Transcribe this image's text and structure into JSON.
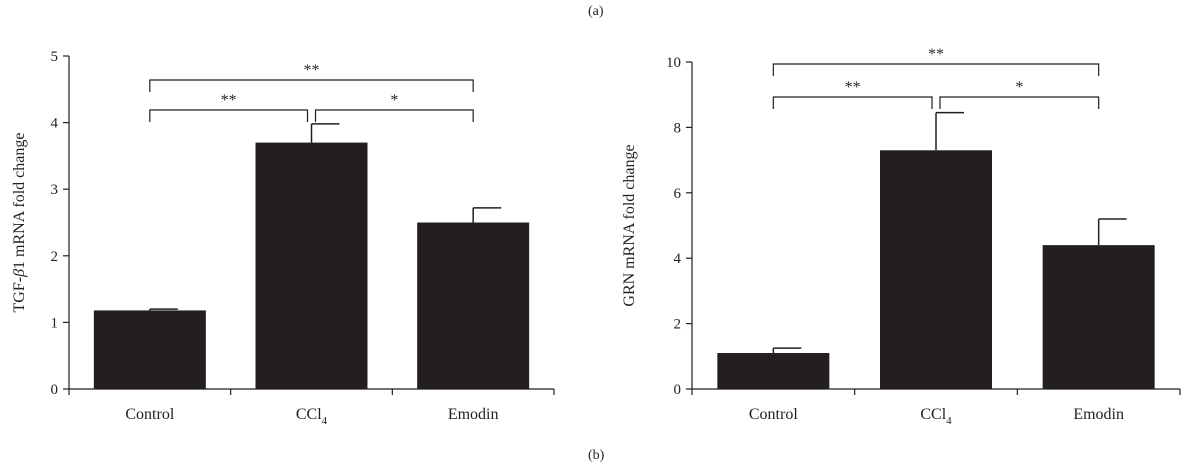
{
  "panel_labels": {
    "top": "(a)",
    "bottom": "(b)"
  },
  "colors": {
    "bar": "#231f20",
    "axis": "#231f20"
  },
  "chart_data": [
    {
      "type": "bar",
      "categories": [
        "Control",
        "CCl4",
        "Emodin"
      ],
      "values": [
        1.18,
        3.7,
        2.5
      ],
      "errors": [
        0.02,
        0.28,
        0.22
      ],
      "title": "",
      "xlabel": "",
      "ylabel": "TGF-β1 mRNA fold change",
      "ylim": [
        0,
        5
      ],
      "yticks": [
        0,
        1,
        2,
        3,
        4,
        5
      ],
      "grid": false,
      "significance": [
        {
          "from": 0,
          "to": 1,
          "label": "**"
        },
        {
          "from": 1,
          "to": 2,
          "label": "*"
        },
        {
          "from": 0,
          "to": 2,
          "label": "**"
        }
      ]
    },
    {
      "type": "bar",
      "categories": [
        "Control",
        "CCl4",
        "Emodin"
      ],
      "values": [
        1.1,
        7.3,
        4.4
      ],
      "errors": [
        0.15,
        1.15,
        0.8
      ],
      "title": "",
      "xlabel": "",
      "ylabel": "GRN mRNA fold change",
      "ylim": [
        0,
        10
      ],
      "yticks": [
        0,
        2,
        4,
        6,
        8,
        10
      ],
      "grid": false,
      "significance": [
        {
          "from": 0,
          "to": 1,
          "label": "**"
        },
        {
          "from": 1,
          "to": 2,
          "label": "*"
        },
        {
          "from": 0,
          "to": 2,
          "label": "**"
        }
      ]
    }
  ]
}
